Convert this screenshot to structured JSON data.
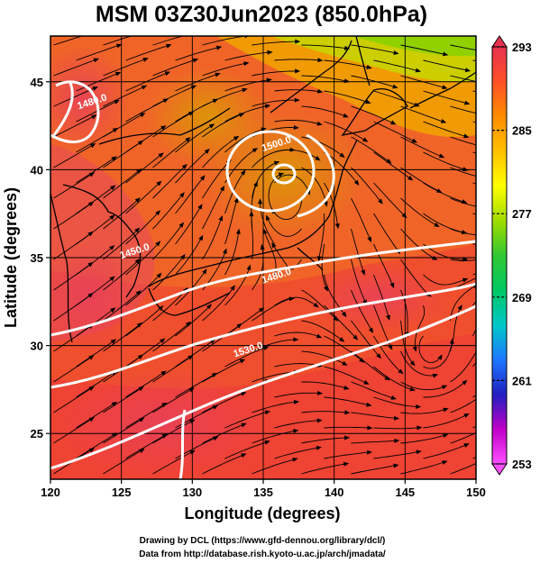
{
  "chart_data": {
    "type": "heatmap",
    "title": "MSM 03Z30Jun2023 (850.0hPa)",
    "xlabel": "Longitude (degrees)",
    "ylabel": "Latitude  (degrees)",
    "xlim": [
      120,
      150
    ],
    "ylim": [
      22.4,
      47.6
    ],
    "x_ticks": [
      "120",
      "125",
      "130",
      "135",
      "140",
      "145",
      "150"
    ],
    "y_ticks": [
      "25",
      "30",
      "35",
      "40",
      "45"
    ],
    "grid": true,
    "colorbar": {
      "min": 253,
      "max": 293,
      "tick_labels": [
        "293",
        "285",
        "277",
        "269",
        "261",
        "253"
      ],
      "colors": [
        "#ff50ff",
        "#c000c8",
        "#2020c0",
        "#1e78ff",
        "#00c8c8",
        "#00c864",
        "#32c832",
        "#a0dc00",
        "#ffff00",
        "#ffc000",
        "#ff8c00",
        "#ff5028",
        "#e63250"
      ]
    },
    "contours": [
      {
        "label": "1450.0",
        "lon": 126,
        "lat": 35.2
      },
      {
        "label": "1480.0",
        "lon": 123,
        "lat": 43.7
      },
      {
        "label": "1480.0",
        "lon": 136,
        "lat": 33.8
      },
      {
        "label": "1500.0",
        "lon": 136,
        "lat": 41.3
      },
      {
        "label": "1530.0",
        "lon": 134,
        "lat": 29.6
      }
    ]
  },
  "credits": {
    "line1": "Drawing by DCL (https://www.gfd-dennou.org/library/dcl/)",
    "line2": "Data from http://database.rish.kyoto-u.ac.jp/arch/jmadata/"
  }
}
